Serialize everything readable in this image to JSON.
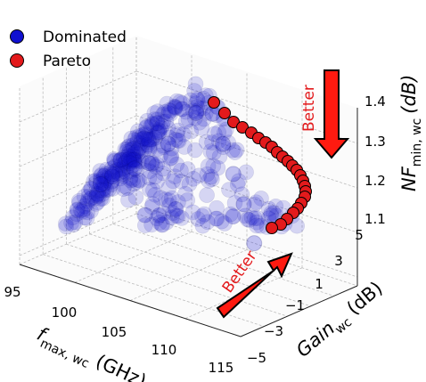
{
  "chart_data": {
    "type": "scatter",
    "title": "",
    "legend": {
      "placement": "top-left",
      "entries": [
        {
          "name": "Dominated",
          "color": "#1010d0"
        },
        {
          "name": "Pareto",
          "color": "#e31a1c"
        }
      ]
    },
    "x_axis": {
      "label_main": "f",
      "label_sub": "max, wc",
      "label_unit": " (GHz)",
      "ticks": [
        "95",
        "100",
        "105",
        "110",
        "115"
      ],
      "range": [
        95,
        115
      ]
    },
    "y_axis": {
      "label_main": "Gain",
      "label_sub": "wc",
      "label_unit": " (dB)",
      "ticks": [
        "−5",
        "−3",
        "−1",
        "1",
        "3",
        "5"
      ],
      "range": [
        -5,
        5
      ]
    },
    "z_axis": {
      "label_main": "NF",
      "label_sub": "min, wc",
      "label_unit": "(dB)",
      "ticks": [
        "1.1",
        "1.2",
        "1.3",
        "1.4"
      ],
      "range": [
        1.08,
        1.48
      ]
    },
    "annotations": [
      {
        "text": "Better",
        "meaning": "lower noise figure is better"
      },
      {
        "text": "Better",
        "meaning": "higher f_max and higher gain is better"
      }
    ],
    "grid": true,
    "series": [
      {
        "name": "Dominated",
        "color": "#1010d0",
        "generation": "dense cloud of design points, approx. 8 bands of f_max 96-113 GHz, gain -3 to 4 dB, NF 1.18-1.46 dB",
        "points": [
          {
            "x": 96,
            "y": 1,
            "z": 1.2
          },
          {
            "x": 98,
            "y": 2,
            "z": 1.24
          },
          {
            "x": 100,
            "y": 3,
            "z": 1.3
          },
          {
            "x": 102,
            "y": 3.5,
            "z": 1.38
          },
          {
            "x": 104,
            "y": 3,
            "z": 1.4
          },
          {
            "x": 106,
            "y": 2,
            "z": 1.36
          },
          {
            "x": 108,
            "y": 1,
            "z": 1.32
          },
          {
            "x": 110,
            "y": 0,
            "z": 1.28
          },
          {
            "x": 112,
            "y": -1,
            "z": 1.22
          }
        ]
      },
      {
        "name": "Pareto",
        "color": "#e31a1c",
        "points": [
          {
            "x": 104,
            "y": 3.8,
            "z": 1.45
          },
          {
            "x": 106,
            "y": 3.5,
            "z": 1.39
          },
          {
            "x": 108,
            "y": 3.0,
            "z": 1.34
          },
          {
            "x": 109,
            "y": 2.6,
            "z": 1.31
          },
          {
            "x": 110,
            "y": 2.0,
            "z": 1.28
          },
          {
            "x": 111,
            "y": 1.4,
            "z": 1.25
          },
          {
            "x": 112,
            "y": 0.6,
            "z": 1.22
          },
          {
            "x": 112.5,
            "y": 0.0,
            "z": 1.2
          },
          {
            "x": 113,
            "y": -0.6,
            "z": 1.17
          },
          {
            "x": 113.2,
            "y": -1.2,
            "z": 1.14
          },
          {
            "x": 113.4,
            "y": -1.8,
            "z": 1.12
          },
          {
            "x": 113.5,
            "y": -2.4,
            "z": 1.1
          }
        ]
      }
    ]
  }
}
